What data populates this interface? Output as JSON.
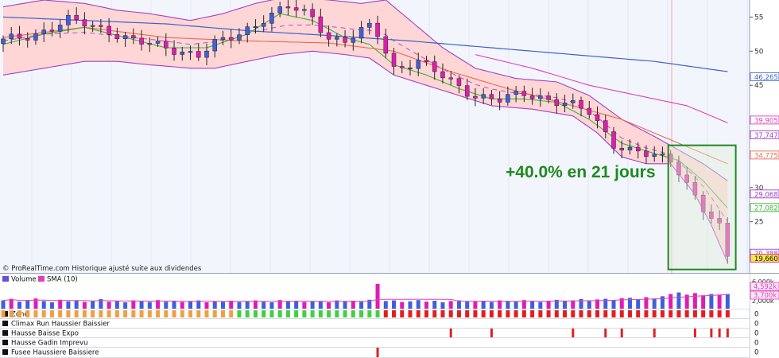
{
  "source": "© ProRealTime.com  Historique ajusté suite aux dividendes",
  "annotation": "+40.0% en 21 jours",
  "colors": {
    "up": "#3f5fdc",
    "down": "#e01cb0",
    "bollinger_fill": "#ffd6d6",
    "bollinger_line": "#a040c8",
    "sma_fast": "#3cb43c",
    "sma_mid": "#e86a52",
    "sma_slow": "#3b62c9",
    "sma_pink": "#e040b8",
    "dashed": "#b050d0",
    "box": "#1e8a1e"
  },
  "price_axis": {
    "ticks": [
      "55",
      "50",
      "45",
      "30",
      "25"
    ],
    "ylim": [
      17.5,
      57.5
    ]
  },
  "price_tags": [
    {
      "label": "46,265",
      "value": 46.265,
      "color": "#3b62c9"
    },
    {
      "label": "39,905",
      "value": 39.905,
      "color": "#e040b8"
    },
    {
      "label": "37,747",
      "value": 37.747,
      "color": "#a040c8"
    },
    {
      "label": "34,775",
      "value": 34.775,
      "color": "#e86a52"
    },
    {
      "label": "29,068",
      "value": 29.068,
      "color": "#a040c8"
    },
    {
      "label": "27,082",
      "value": 27.082,
      "color": "#3cb43c"
    },
    {
      "label": "20,388",
      "value": 20.388,
      "color": "#a040c8"
    },
    {
      "label": "19,660",
      "value": 19.66,
      "color": "#e01cb0",
      "highlight": true
    }
  ],
  "volume_panel": {
    "legend": [
      {
        "label": "Volume",
        "color": "#6a4fd8"
      },
      {
        "label": "SMA (10)",
        "color": "#e040b8"
      }
    ],
    "axis_ticks": [
      "6,000k",
      "2,000k"
    ],
    "tags": [
      {
        "label": "4,592k",
        "color": "#e040b8"
      },
      {
        "label": "3,700k",
        "color": "#e040b8"
      }
    ]
  },
  "indicators": [
    {
      "label": "Zone",
      "value": "0"
    },
    {
      "label": "Climax Run Haussier Baissier",
      "value": "0"
    },
    {
      "label": "Hausse Baisse Expo",
      "value": "0"
    },
    {
      "label": "Hausse Gadin Imprevu",
      "value": "0"
    },
    {
      "label": "Fusee Haussiere Baissiere",
      "value": "0"
    }
  ],
  "chart_data": {
    "type": "candlestick",
    "title": "",
    "ylim": [
      17.5,
      57.5
    ],
    "bars": 90,
    "close_path": [
      [
        0,
        51.5
      ],
      [
        4,
        52.5
      ],
      [
        8,
        54.5
      ],
      [
        10,
        54
      ],
      [
        13,
        53
      ],
      [
        16,
        51.5
      ],
      [
        20,
        50.5
      ],
      [
        24,
        49.5
      ],
      [
        26,
        51
      ],
      [
        29,
        52.5
      ],
      [
        32,
        54.8
      ],
      [
        35,
        56.5
      ],
      [
        38,
        55
      ],
      [
        40,
        52
      ],
      [
        42,
        51.5
      ],
      [
        45,
        53.5
      ],
      [
        46,
        52.5
      ],
      [
        48,
        47.5
      ],
      [
        51,
        48.5
      ],
      [
        53,
        47
      ],
      [
        55,
        45.5
      ],
      [
        58,
        43.5
      ],
      [
        61,
        42.8
      ],
      [
        64,
        43.8
      ],
      [
        67,
        43
      ],
      [
        70,
        42
      ],
      [
        72,
        41
      ],
      [
        75,
        36.5
      ],
      [
        77,
        35.5
      ],
      [
        80,
        34.5
      ],
      [
        82,
        34
      ],
      [
        83,
        32.5
      ],
      [
        86,
        27
      ],
      [
        88,
        24
      ],
      [
        89,
        19.66
      ]
    ],
    "bollinger_upper_path": [
      [
        0,
        56.5
      ],
      [
        5,
        57.5
      ],
      [
        10,
        57
      ],
      [
        14,
        56
      ],
      [
        18,
        55.5
      ],
      [
        23,
        54.5
      ],
      [
        27,
        55.5
      ],
      [
        31,
        57
      ],
      [
        35,
        58
      ],
      [
        40,
        57.5
      ],
      [
        44,
        57
      ],
      [
        47,
        57.5
      ],
      [
        50,
        54.5
      ],
      [
        54,
        50.5
      ],
      [
        58,
        47.5
      ],
      [
        63,
        46
      ],
      [
        68,
        45.5
      ],
      [
        72,
        43.5
      ],
      [
        76,
        40
      ],
      [
        80,
        37.5
      ],
      [
        83,
        35.5
      ],
      [
        86,
        33.5
      ],
      [
        89,
        31
      ]
    ],
    "bollinger_lower_path": [
      [
        0,
        46.5
      ],
      [
        5,
        47.5
      ],
      [
        10,
        48.5
      ],
      [
        14,
        48.5
      ],
      [
        18,
        48
      ],
      [
        23,
        47.5
      ],
      [
        26,
        47.5
      ],
      [
        30,
        48.5
      ],
      [
        34,
        49.5
      ],
      [
        38,
        50
      ],
      [
        42,
        49.5
      ],
      [
        45,
        49
      ],
      [
        48,
        46.5
      ],
      [
        52,
        45
      ],
      [
        56,
        43.5
      ],
      [
        60,
        42
      ],
      [
        65,
        41.5
      ],
      [
        70,
        40.5
      ],
      [
        73,
        38
      ],
      [
        76,
        34.5
      ],
      [
        79,
        33.5
      ],
      [
        82,
        33.5
      ],
      [
        85,
        29
      ],
      [
        87,
        24.5
      ],
      [
        89,
        19
      ]
    ],
    "sma_fast_path": [
      [
        0,
        51
      ],
      [
        5,
        52.5
      ],
      [
        10,
        53.5
      ],
      [
        15,
        52
      ],
      [
        20,
        50.5
      ],
      [
        25,
        50.5
      ],
      [
        30,
        52.5
      ],
      [
        34,
        55.5
      ],
      [
        38,
        54.5
      ],
      [
        42,
        52
      ],
      [
        45,
        51
      ],
      [
        48,
        48
      ],
      [
        52,
        46.5
      ],
      [
        56,
        44.5
      ],
      [
        60,
        43
      ],
      [
        64,
        43
      ],
      [
        68,
        42.5
      ],
      [
        72,
        40
      ],
      [
        76,
        36.5
      ],
      [
        80,
        35
      ],
      [
        83,
        34
      ],
      [
        86,
        31
      ],
      [
        89,
        27
      ]
    ],
    "sma_mid_path": [
      [
        0,
        52
      ],
      [
        10,
        53.5
      ],
      [
        20,
        52
      ],
      [
        30,
        51.5
      ],
      [
        40,
        51.2
      ],
      [
        48,
        50
      ],
      [
        55,
        47
      ],
      [
        62,
        44.5
      ],
      [
        70,
        42
      ],
      [
        76,
        40
      ],
      [
        82,
        37
      ],
      [
        89,
        33.5
      ]
    ],
    "sma_slow_path": [
      [
        0,
        55
      ],
      [
        10,
        54.5
      ],
      [
        20,
        54
      ],
      [
        30,
        53
      ],
      [
        40,
        52.3
      ],
      [
        50,
        51.5
      ],
      [
        60,
        50.5
      ],
      [
        70,
        49.5
      ],
      [
        80,
        48.5
      ],
      [
        89,
        47
      ]
    ],
    "sma_pink_path": [
      [
        58,
        49.5
      ],
      [
        65,
        47.5
      ],
      [
        72,
        45
      ],
      [
        78,
        43.5
      ],
      [
        84,
        42
      ],
      [
        89,
        39.5
      ]
    ],
    "highlight_box": {
      "from_bar": 82,
      "to_bar": 90,
      "ylim": [
        18,
        36.2
      ],
      "gain_pct": 40.0,
      "days": 21
    },
    "volume": [
      2.6,
      3.1,
      2.2,
      2.5,
      3.2,
      2.4,
      2.0,
      2.8,
      2.3,
      2.6,
      2.1,
      2.5,
      3.0,
      2.2,
      2.4,
      2.0,
      2.6,
      2.3,
      2.1,
      2.7,
      2.2,
      2.5,
      2.1,
      2.3,
      2.6,
      2.0,
      2.4,
      2.2,
      2.5,
      2.1,
      2.4,
      2.6,
      2.2,
      2.0,
      2.7,
      2.3,
      2.5,
      2.1,
      2.4,
      2.2,
      2.0,
      2.6,
      2.3,
      2.5,
      2.2,
      2.8,
      7.8,
      2.4,
      2.6,
      2.1,
      2.3,
      2.7,
      2.2,
      2.5,
      2.0,
      2.4,
      2.6,
      2.2,
      2.3,
      2.5,
      2.1,
      2.6,
      2.4,
      2.2,
      2.7,
      2.3,
      2.1,
      2.5,
      2.8,
      2.4,
      2.6,
      3.0,
      2.4,
      2.9,
      3.1,
      2.7,
      3.3,
      3.4,
      3.0,
      3.6,
      3.2,
      3.9,
      4.6,
      5.1,
      4.4,
      4.9,
      4.2,
      4.6,
      4.4,
      4.6
    ],
    "zone_colors": "orange for bars 0-28, green for bars 29-46, red for bars 47-89",
    "expo_signal_bars": [
      55,
      60,
      70,
      74,
      76,
      80,
      85,
      87,
      88,
      89
    ],
    "fusee_signal_bars": [
      46
    ]
  }
}
